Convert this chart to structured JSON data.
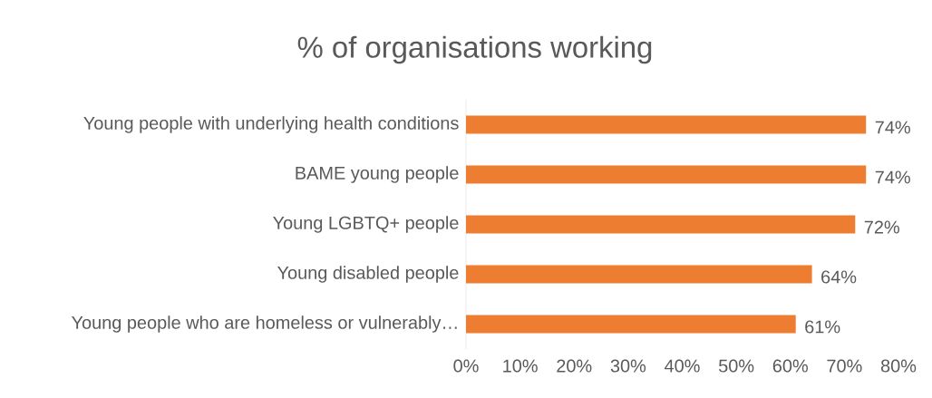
{
  "chart_data": {
    "type": "bar",
    "orientation": "horizontal",
    "title": "% of organisations working",
    "categories": [
      "Young people with underlying health conditions",
      "BAME young people",
      "Young LGBTQ+ people",
      "Young disabled people",
      "Young people who are homeless or vulnerably…"
    ],
    "values": [
      74,
      74,
      72,
      64,
      61
    ],
    "value_labels": [
      "74%",
      "74%",
      "72%",
      "64%",
      "61%"
    ],
    "color": "#ed7d31",
    "xlim": [
      0,
      80
    ],
    "xticks": [
      {
        "value": 0,
        "label": "0%"
      },
      {
        "value": 10,
        "label": "10%"
      },
      {
        "value": 20,
        "label": "20%"
      },
      {
        "value": 30,
        "label": "30%"
      },
      {
        "value": 40,
        "label": "40%"
      },
      {
        "value": 50,
        "label": "50%"
      },
      {
        "value": 60,
        "label": "60%"
      },
      {
        "value": 70,
        "label": "70%"
      },
      {
        "value": 80,
        "label": "80%"
      }
    ],
    "grid": false
  }
}
